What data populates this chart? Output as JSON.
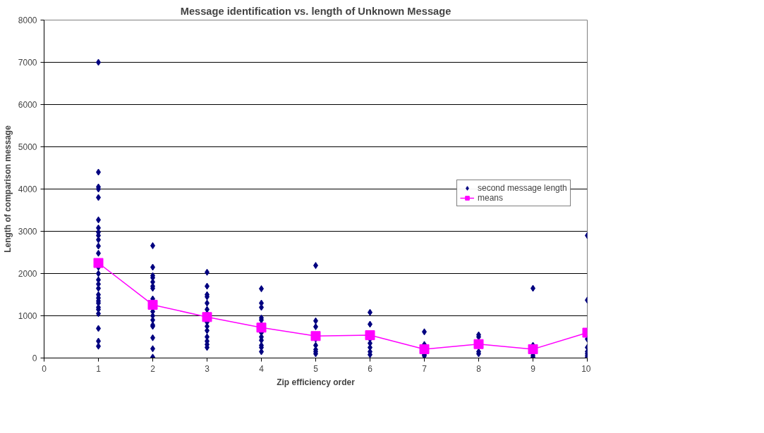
{
  "chart_data": {
    "type": "scatter",
    "title": "Message identification vs. length of Unknown Message",
    "xlabel": "Zip efficiency order",
    "ylabel": "Length of comparison message",
    "xlim": [
      0,
      10
    ],
    "xticks": [
      0,
      1,
      2,
      3,
      4,
      5,
      6,
      7,
      8,
      9,
      10
    ],
    "ylim": [
      0,
      8000
    ],
    "yticks": [
      0,
      1000,
      2000,
      3000,
      4000,
      5000,
      6000,
      7000,
      8000
    ],
    "grid": "y",
    "legend": "right",
    "series": [
      {
        "name": "second message length",
        "marker": "diamond",
        "color": "#000080",
        "x": [
          1,
          1,
          1,
          1,
          1,
          1,
          1,
          1,
          1,
          1,
          1,
          1,
          1,
          1,
          1,
          1,
          1,
          1,
          1,
          1,
          1,
          1,
          1,
          1,
          1,
          1,
          1,
          2,
          2,
          2,
          2,
          2,
          2,
          2,
          2,
          2,
          2,
          2,
          2,
          2,
          2,
          2,
          2,
          3,
          3,
          3,
          3,
          3,
          3,
          3,
          3,
          3,
          3,
          3,
          3,
          3,
          3,
          4,
          4,
          4,
          4,
          4,
          4,
          4,
          4,
          4,
          4,
          4,
          4,
          5,
          5,
          5,
          5,
          5,
          5,
          5,
          5,
          6,
          6,
          6,
          6,
          6,
          6,
          6,
          7,
          7,
          7,
          7,
          8,
          8,
          8,
          8,
          9,
          9,
          9,
          9,
          9,
          10,
          10,
          10,
          10,
          10,
          10,
          10,
          10
        ],
        "values": [
          7000,
          4400,
          4050,
          4000,
          3800,
          3270,
          3080,
          2980,
          2900,
          2800,
          2650,
          2480,
          2150,
          2000,
          1850,
          1750,
          1650,
          1500,
          1420,
          1350,
          1300,
          1200,
          1150,
          1050,
          700,
          400,
          280,
          2660,
          2150,
          1950,
          1900,
          1800,
          1700,
          1650,
          1400,
          1100,
          1000,
          900,
          780,
          750,
          480,
          220,
          20,
          2030,
          1700,
          1500,
          1450,
          1300,
          1150,
          1050,
          850,
          750,
          650,
          500,
          400,
          320,
          250,
          1640,
          1300,
          1200,
          950,
          900,
          800,
          600,
          500,
          420,
          300,
          250,
          150,
          2190,
          880,
          740,
          450,
          300,
          200,
          150,
          100,
          1080,
          800,
          450,
          350,
          250,
          150,
          80,
          620,
          320,
          80,
          50,
          550,
          500,
          150,
          100,
          1650,
          300,
          100,
          50,
          10,
          2900,
          1370,
          450,
          250,
          150,
          100,
          50,
          10
        ]
      },
      {
        "name": "means",
        "type": "line",
        "marker": "square",
        "color": "#ff00ff",
        "x": [
          1,
          2,
          3,
          4,
          5,
          6,
          7,
          8,
          9,
          10
        ],
        "values": [
          2250,
          1260,
          970,
          720,
          520,
          540,
          210,
          330,
          210,
          600
        ]
      }
    ]
  }
}
